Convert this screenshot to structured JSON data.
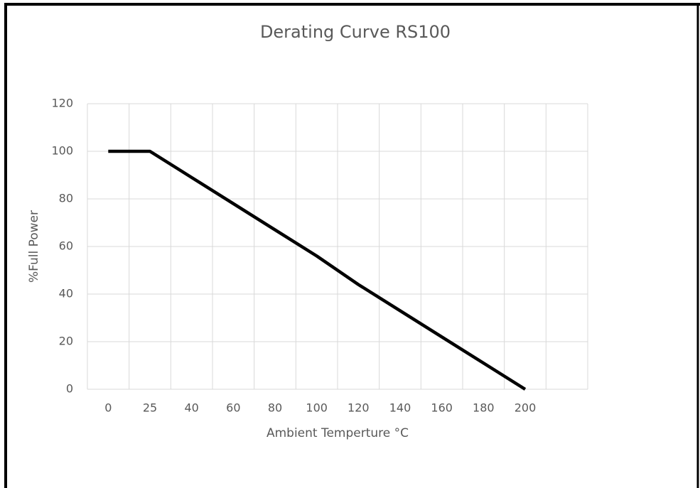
{
  "chart_data": {
    "type": "line",
    "title": "Derating Curve RS100",
    "x_label": "Ambient Temperture °C",
    "y_label": "%Full Power",
    "categories": [
      "0",
      "25",
      "40",
      "60",
      "80",
      "100",
      "120",
      "140",
      "160",
      "180",
      "200",
      null
    ],
    "values": [
      100,
      100,
      89,
      78,
      67,
      56,
      44,
      33,
      22,
      11,
      0,
      null
    ],
    "color": "#000000",
    "ylim": [
      0,
      120
    ],
    "yticks": [
      0,
      20,
      40,
      60,
      80,
      100,
      120
    ],
    "grid": true
  }
}
